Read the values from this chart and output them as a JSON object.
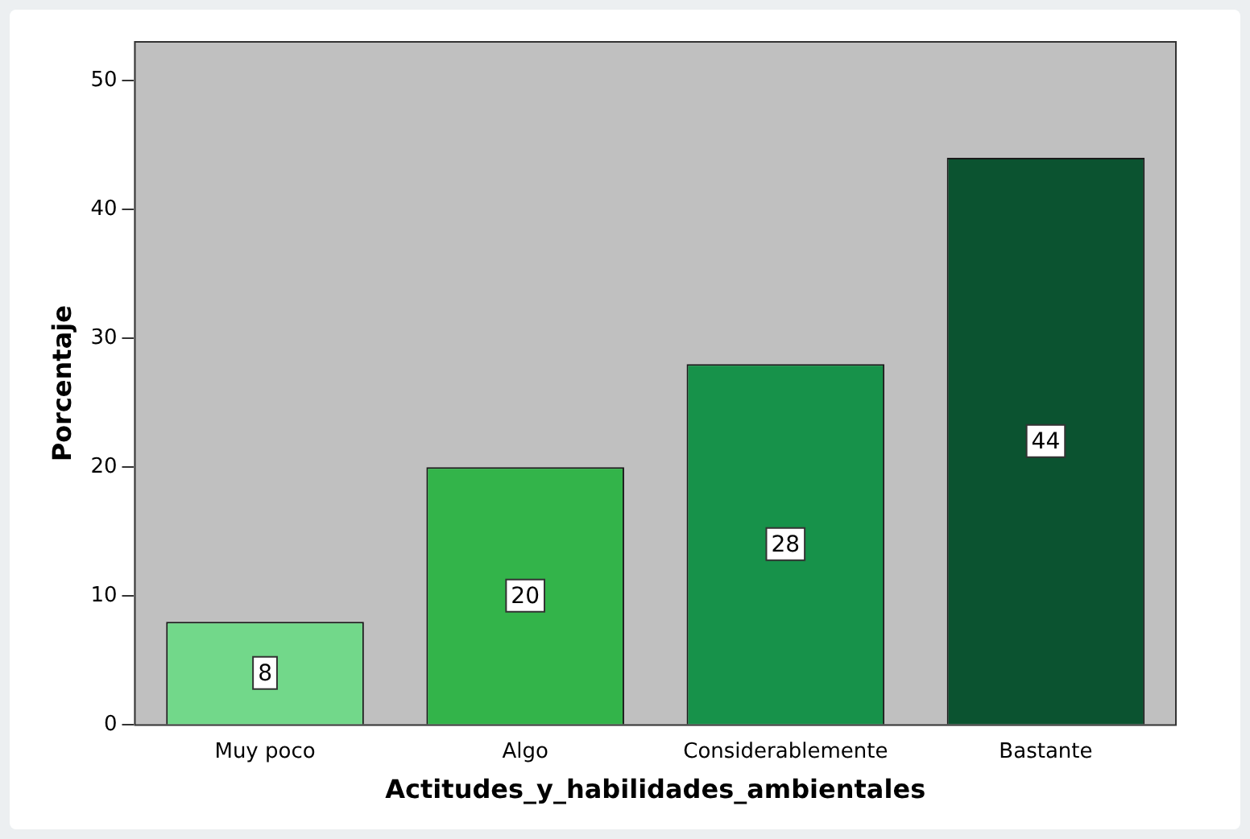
{
  "chart_data": {
    "type": "bar",
    "xlabel": "Actitudes_y_habilidades_ambientales",
    "ylabel": "Porcentaje",
    "categories": [
      "Muy poco",
      "Algo",
      "Considerablemente",
      "Bastante"
    ],
    "values": [
      8,
      20,
      28,
      44
    ],
    "colors": [
      "#72d88a",
      "#33b44a",
      "#17924a",
      "#0b5330"
    ],
    "ylim": [
      0,
      53
    ],
    "yticks": [
      0,
      10,
      20,
      30,
      40,
      50
    ],
    "data_labels": true,
    "grid": false,
    "legend": false
  }
}
